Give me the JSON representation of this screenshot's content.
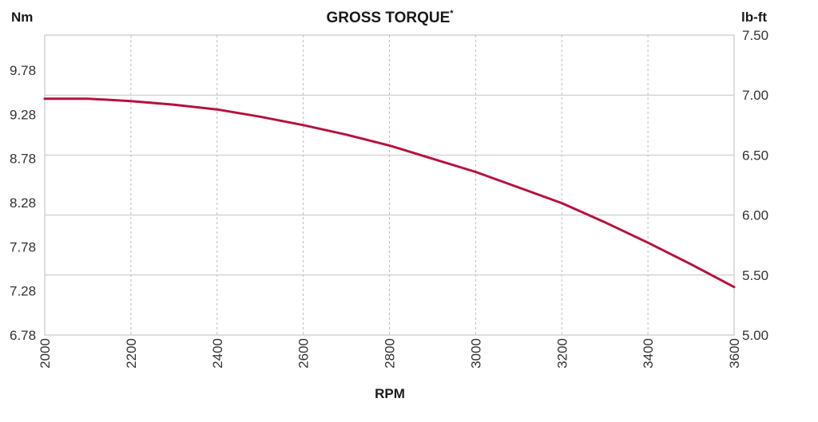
{
  "chart_data": {
    "type": "line",
    "title": "GROSS TORQUE",
    "title_mark": "*",
    "xlabel": "RPM",
    "ylabel_left": "Nm",
    "ylabel_right": "lb-ft",
    "x_ticks": [
      "2000",
      "2200",
      "2400",
      "2600",
      "2800",
      "3000",
      "3200",
      "3400",
      "3600"
    ],
    "y_left_ticks": [
      "6.78",
      "7.28",
      "7.78",
      "8.28",
      "8.78",
      "9.28",
      "9.78"
    ],
    "y_right_ticks": [
      "5.00",
      "5.50",
      "6.00",
      "6.50",
      "7.00",
      "7.50"
    ],
    "xlim": [
      2000,
      3600
    ],
    "ylim_right": [
      5.0,
      7.5
    ],
    "grid": true,
    "line_color": "#b5123e",
    "series": [
      {
        "x": [
          2000,
          2100,
          2200,
          2300,
          2400,
          2500,
          2600,
          2700,
          2800,
          2900,
          3000,
          3100,
          3200,
          3300,
          3400,
          3500,
          3600
        ],
        "y": [
          6.97,
          6.97,
          6.95,
          6.92,
          6.88,
          6.82,
          6.75,
          6.67,
          6.58,
          6.47,
          6.36,
          6.23,
          6.1,
          5.94,
          5.77,
          5.59,
          5.4
        ]
      }
    ]
  }
}
